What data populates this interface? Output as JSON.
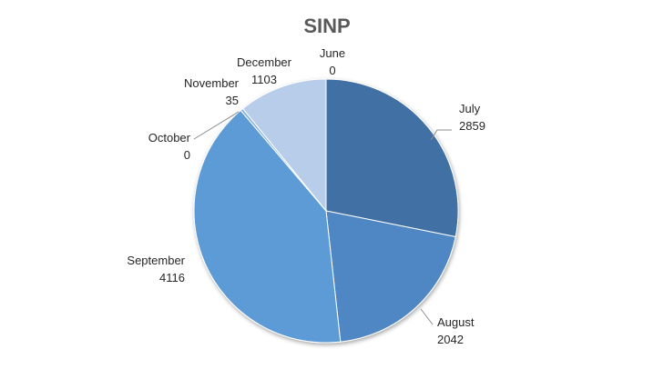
{
  "chart_data": {
    "type": "pie",
    "title": "SINP",
    "categories": [
      "June",
      "July",
      "August",
      "September",
      "October",
      "November",
      "December"
    ],
    "values": [
      0,
      2859,
      2042,
      4116,
      0,
      35,
      1103
    ],
    "legend": "none",
    "data_labels": "category-and-value"
  },
  "colors": {
    "June": "#3e6ea2",
    "July": "#3f6fa4",
    "August": "#4f86c4",
    "September": "#5b9bd5",
    "October": "#7aa9d9",
    "November": "#8db5df",
    "December": "#b7cde9"
  }
}
